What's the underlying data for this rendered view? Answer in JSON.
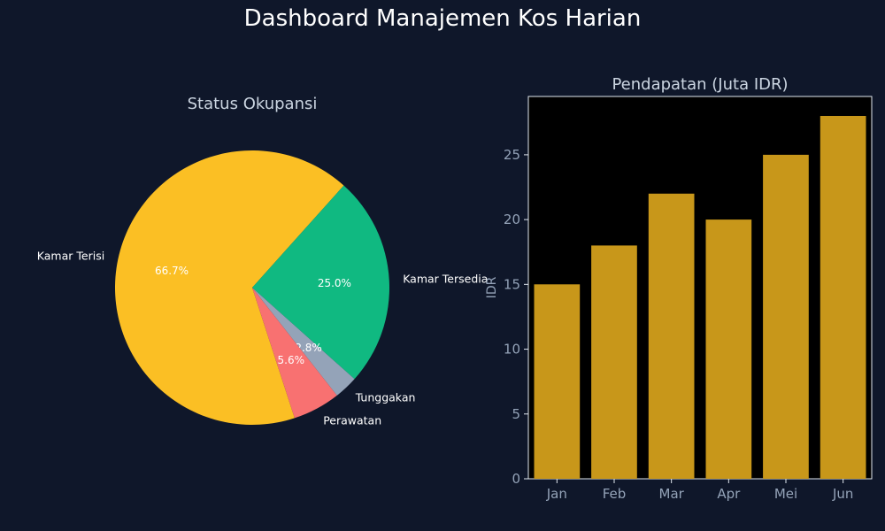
{
  "title": "Dashboard Manajemen Kos Harian",
  "chart_data": [
    {
      "type": "pie",
      "title": "Status Okupansi",
      "labels": [
        "Kamar Terisi",
        "Kamar Tersedia",
        "Tunggakan",
        "Perawatan"
      ],
      "values": [
        66.7,
        25.0,
        2.8,
        5.6
      ],
      "pct_labels": [
        "66.7%",
        "25.0%",
        "2.8%",
        "5.6%"
      ],
      "colors": [
        "#fbbf24",
        "#10b981",
        "#94a3b8",
        "#f87171"
      ],
      "start_angle_deg": 72,
      "direction": "clockwise"
    },
    {
      "type": "bar",
      "title": "Pendapatan (Juta IDR)",
      "categories": [
        "Jan",
        "Feb",
        "Mar",
        "Apr",
        "Mei",
        "Jun"
      ],
      "values": [
        15,
        18,
        22,
        20,
        25,
        28
      ],
      "ylabel": "IDR",
      "xlabel": "",
      "ylim": [
        0,
        29.5
      ],
      "yticks": [
        0,
        5,
        10,
        15,
        20,
        25
      ],
      "bar_color": "#c8971a",
      "plot_background": "#000000",
      "grid": false
    }
  ]
}
